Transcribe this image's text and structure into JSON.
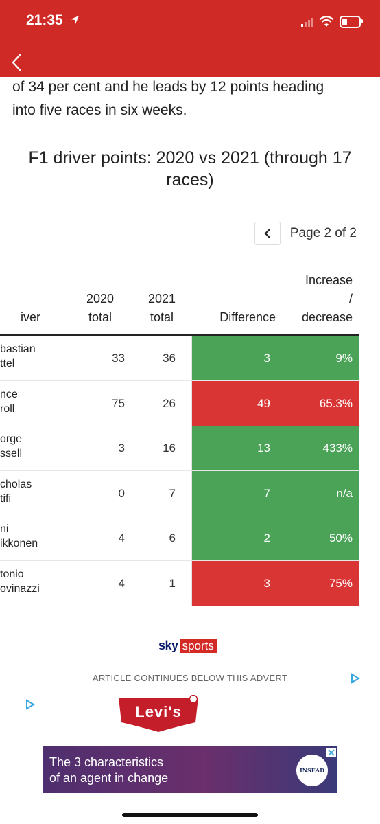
{
  "status_bar": {
    "time": "21:35"
  },
  "article": {
    "body_lines": [
      "of 34 per cent and he leads by 12 points heading",
      "into five races in six weeks."
    ]
  },
  "chart": {
    "title": "F1 driver points: 2020 vs 2021 (through 17 races)",
    "pager_text": "Page 2 of 2",
    "headers": {
      "driver": "iver",
      "y2020_line1": "2020",
      "y2020_line2": "total",
      "y2021_line1": "2021",
      "y2021_line2": "total",
      "difference": "Difference",
      "pct_line1": "Increase",
      "pct_line2": "/",
      "pct_line3": "decrease"
    },
    "colors": {
      "increase": "#4aa357",
      "decrease": "#d93535"
    },
    "rows": [
      {
        "driver_line1": "bastian",
        "driver_line2": "ttel",
        "y2020": "33",
        "y2021": "36",
        "difference": "3",
        "change": "9%",
        "trend": "increase"
      },
      {
        "driver_line1": "nce",
        "driver_line2": "roll",
        "y2020": "75",
        "y2021": "26",
        "difference": "49",
        "change": "65.3%",
        "trend": "decrease"
      },
      {
        "driver_line1": "orge",
        "driver_line2": "ssell",
        "y2020": "3",
        "y2021": "16",
        "difference": "13",
        "change": "433%",
        "trend": "increase"
      },
      {
        "driver_line1": "cholas",
        "driver_line2": "tifi",
        "y2020": "0",
        "y2021": "7",
        "difference": "7",
        "change": "n/a",
        "trend": "increase"
      },
      {
        "driver_line1": "ni",
        "driver_line2": "ikkonen",
        "y2020": "4",
        "y2021": "6",
        "difference": "2",
        "change": "50%",
        "trend": "increase"
      },
      {
        "driver_line1": "tonio",
        "driver_line2": "ovinazzi",
        "y2020": "4",
        "y2021": "1",
        "difference": "3",
        "change": "75%",
        "trend": "decrease"
      }
    ]
  },
  "branding": {
    "sky": "sky",
    "sports": "sports"
  },
  "advert": {
    "notice": "ARTICLE CONTINUES BELOW THIS ADVERT",
    "logo": "Levi's",
    "banner_line1": "The 3 characteristics",
    "banner_line2": "of an agent in change",
    "banner_brand": "INSEAD"
  }
}
